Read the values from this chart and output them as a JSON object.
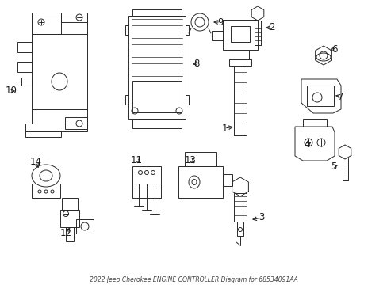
{
  "title": "2022 Jeep Cherokee ENGINE CONTROLLER Diagram for 68534091AA",
  "bg": "#ffffff",
  "lc": "#2a2a2a",
  "fig_w": 4.89,
  "fig_h": 3.6,
  "dpi": 100,
  "label_fs": 8.5,
  "caption_fs": 5.5
}
